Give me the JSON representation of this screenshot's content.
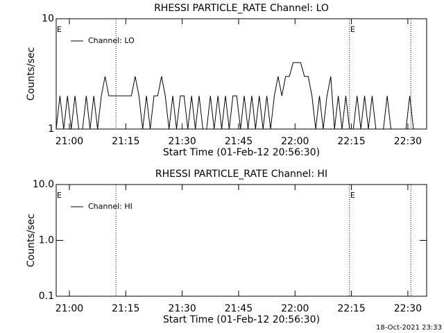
{
  "chart_data": [
    {
      "type": "line",
      "title": "RHESSI PARTICLE_RATE Channel: LO",
      "xlabel": "Start Time (01-Feb-12 20:56:30)",
      "ylabel": "Counts/sec",
      "log_y": true,
      "xlim": [
        0,
        98.5
      ],
      "xticks": [
        {
          "value": 3.5,
          "label": "21:00"
        },
        {
          "value": 18.5,
          "label": "21:15"
        },
        {
          "value": 33.5,
          "label": "21:30"
        },
        {
          "value": 48.5,
          "label": "21:45"
        },
        {
          "value": 63.5,
          "label": "22:00"
        },
        {
          "value": 78.5,
          "label": "22:15"
        },
        {
          "value": 93.5,
          "label": "22:30"
        }
      ],
      "ylim": [
        1,
        10
      ],
      "yticks": [
        1,
        10
      ],
      "event_lines": [
        15.9,
        78,
        94.3
      ],
      "events": [
        {
          "x": 0,
          "label": "E"
        },
        {
          "x": 78,
          "label": "E"
        }
      ],
      "series": [
        {
          "name": "Channel: LO",
          "color": "#000000",
          "x": [
            0,
            1,
            2,
            3,
            4,
            5,
            6,
            7,
            8,
            9,
            10,
            11,
            12,
            13,
            14,
            15,
            16,
            17,
            18,
            19,
            20,
            21,
            22,
            23,
            24,
            25,
            26,
            27,
            28,
            29,
            30,
            31,
            32,
            33,
            34,
            35,
            36,
            37,
            38,
            39,
            40,
            41,
            42,
            43,
            44,
            45,
            46,
            47,
            48,
            49,
            50,
            51,
            52,
            53,
            54,
            55,
            56,
            57,
            58,
            59,
            60,
            61,
            62,
            63,
            64,
            65,
            66,
            67,
            68,
            69,
            70,
            71,
            72,
            73,
            74,
            75,
            76,
            77,
            78,
            79,
            80,
            81,
            82,
            83,
            84,
            85,
            86,
            87,
            88,
            89,
            90,
            91,
            92,
            93,
            94,
            95,
            96,
            97
          ],
          "values": [
            1,
            2,
            1,
            2,
            1,
            2,
            1,
            1,
            2,
            1,
            2,
            1,
            2,
            3,
            2,
            2,
            2,
            2,
            2,
            2,
            2,
            3,
            2,
            1,
            2,
            1,
            2,
            2,
            3,
            2,
            1,
            2,
            1,
            2,
            2,
            1,
            2,
            1,
            2,
            1,
            1,
            2,
            1,
            2,
            1,
            2,
            1,
            2,
            2,
            1,
            2,
            1,
            2,
            1,
            2,
            1,
            2,
            1,
            2,
            3,
            2,
            3,
            3,
            4,
            4,
            4,
            3,
            3,
            2,
            1,
            2,
            1,
            2,
            3,
            1,
            2,
            1,
            2,
            1,
            1,
            2,
            1,
            2,
            1,
            2,
            1,
            1,
            1,
            2,
            1,
            1,
            1,
            1,
            1,
            2,
            1,
            1,
            1
          ]
        }
      ]
    },
    {
      "type": "line",
      "title": "RHESSI PARTICLE_RATE Channel: HI",
      "xlabel": "Start Time (01-Feb-12 20:56:30)",
      "ylabel": "Counts/sec",
      "log_y": true,
      "xlim": [
        0,
        98.5
      ],
      "xticks": [
        {
          "value": 3.5,
          "label": "21:00"
        },
        {
          "value": 18.5,
          "label": "21:15"
        },
        {
          "value": 33.5,
          "label": "21:30"
        },
        {
          "value": 48.5,
          "label": "21:45"
        },
        {
          "value": 63.5,
          "label": "22:00"
        },
        {
          "value": 78.5,
          "label": "22:15"
        },
        {
          "value": 93.5,
          "label": "22:30"
        }
      ],
      "ylim": [
        0.1,
        10
      ],
      "yticks": [
        0.1,
        {
          "value": 1,
          "label": "1.0"
        },
        {
          "value": 10,
          "label": "10.0"
        }
      ],
      "event_lines": [
        15.9,
        78,
        94.3
      ],
      "events": [
        {
          "x": 0,
          "label": "E"
        },
        {
          "x": 78,
          "label": "E"
        }
      ],
      "series": [
        {
          "name": "Channel: HI",
          "color": "#000000",
          "x": [],
          "values": []
        }
      ]
    }
  ],
  "footer": "18-Oct-2021 23:33"
}
